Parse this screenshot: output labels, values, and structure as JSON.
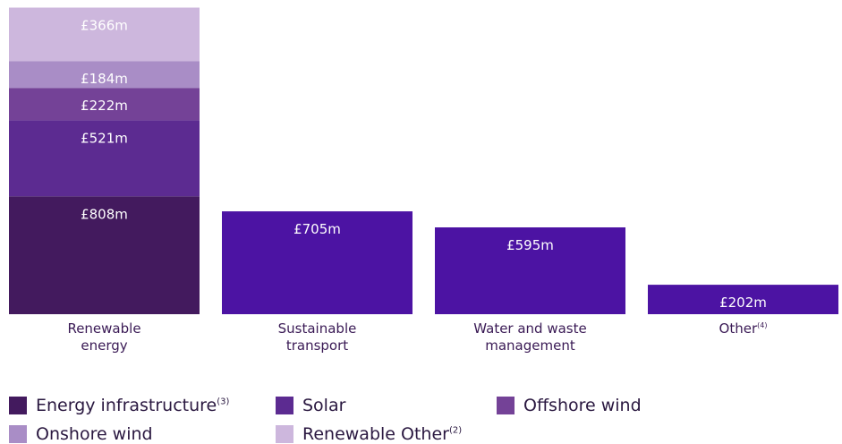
{
  "chart_data": {
    "type": "bar",
    "stacked": true,
    "currency_unit": "£m",
    "categories": [
      {
        "id": "renewable",
        "label_lines": [
          "Renewable",
          "energy"
        ],
        "superscript": ""
      },
      {
        "id": "transport",
        "label_lines": [
          "Sustainable",
          "transport"
        ],
        "superscript": ""
      },
      {
        "id": "water",
        "label_lines": [
          "Water and waste",
          "management"
        ],
        "superscript": ""
      },
      {
        "id": "other",
        "label_lines": [
          "Other"
        ],
        "superscript": "(4)"
      }
    ],
    "stacks": [
      {
        "category": "renewable",
        "segments": [
          {
            "series": "Energy infrastructure",
            "value": 808,
            "label": "£808m",
            "color": "#431a5e"
          },
          {
            "series": "Solar",
            "value": 521,
            "label": "£521m",
            "color": "#5c2b91"
          },
          {
            "series": "Offshore wind",
            "value": 222,
            "label": "£222m",
            "color": "#744297"
          },
          {
            "series": "Onshore wind",
            "value": 184,
            "label": "£184m",
            "color": "#a98dc6"
          },
          {
            "series": "Renewable Other",
            "value": 366,
            "label": "£366m",
            "color": "#cdb7dd"
          }
        ]
      },
      {
        "category": "transport",
        "segments": [
          {
            "series": "",
            "value": 705,
            "label": "£705m",
            "color": "#4c13a3"
          }
        ]
      },
      {
        "category": "water",
        "segments": [
          {
            "series": "",
            "value": 595,
            "label": "£595m",
            "color": "#4c13a3"
          }
        ]
      },
      {
        "category": "other",
        "segments": [
          {
            "series": "",
            "value": 202,
            "label": "£202m",
            "color": "#4c13a3"
          }
        ]
      }
    ],
    "legend": [
      {
        "name": "Energy infrastructure",
        "superscript": "(3)",
        "color": "#431a5e"
      },
      {
        "name": "Solar",
        "superscript": "",
        "color": "#5c2b91"
      },
      {
        "name": "Offshore wind",
        "superscript": "",
        "color": "#744297"
      },
      {
        "name": "Onshore wind",
        "superscript": "",
        "color": "#a98dc6"
      },
      {
        "name": "Renewable Other",
        "superscript": "(2)",
        "color": "#cdb7dd"
      }
    ]
  }
}
